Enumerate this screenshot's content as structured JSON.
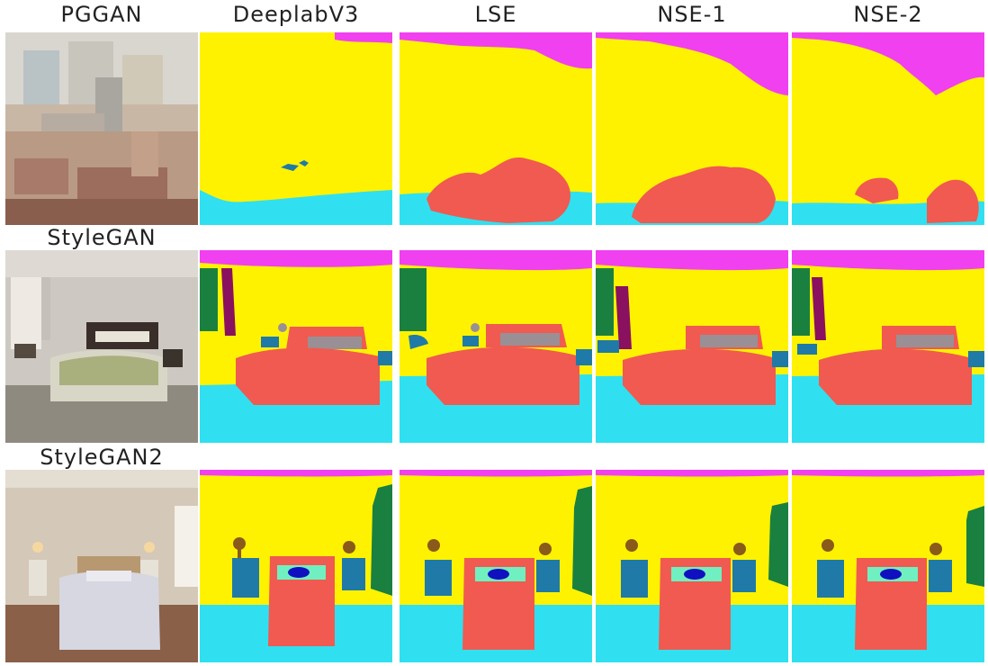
{
  "column_headers": [
    "PGGAN",
    "DeeplabV3",
    "LSE",
    "NSE-1",
    "NSE-2"
  ],
  "row_labels": [
    "StyleGAN",
    "StyleGAN2"
  ],
  "segmentation_colors": {
    "wall": "#fff200",
    "ceiling": "#f040f0",
    "floor": "#30e0f0",
    "bed": "#f05a50",
    "cabinet": "#1f7aa8",
    "curtain": "#1a8040",
    "pillow": "#9a8f95",
    "lamp": "#8a5a1a",
    "sheet": "#70f0c0",
    "cushion": "#1010c0"
  }
}
